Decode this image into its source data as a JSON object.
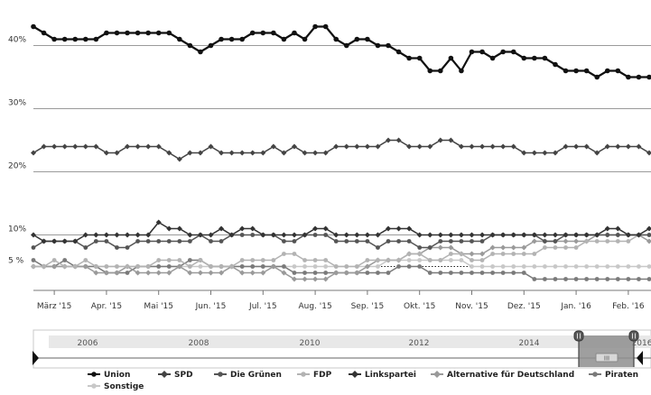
{
  "chart_data": {
    "type": "line",
    "title": "",
    "xlabel": "",
    "ylabel": "",
    "ylim": [
      0,
      44
    ],
    "y_ticks": [
      {
        "value": 5,
        "label": "5 %"
      },
      {
        "value": 10,
        "label": "10%"
      },
      {
        "value": 20,
        "label": "20%"
      },
      {
        "value": 30,
        "label": "30%"
      },
      {
        "value": 40,
        "label": "40%"
      }
    ],
    "x_ticks": [
      {
        "index": 2,
        "label": "März '15"
      },
      {
        "index": 7,
        "label": "Apr. '15"
      },
      {
        "index": 12,
        "label": "Mai '15"
      },
      {
        "index": 17,
        "label": "Jun. '15"
      },
      {
        "index": 22,
        "label": "Jul. '15"
      },
      {
        "index": 27,
        "label": "Aug. '15"
      },
      {
        "index": 32,
        "label": "Sep. '15"
      },
      {
        "index": 37,
        "label": "Okt. '15"
      },
      {
        "index": 42,
        "label": "Nov. '15"
      },
      {
        "index": 47,
        "label": "Dez. '15"
      },
      {
        "index": 52,
        "label": "Jan. '16"
      },
      {
        "index": 57,
        "label": "Feb. '16"
      }
    ],
    "grid": true,
    "legend_position": "bottom",
    "point_count": 60,
    "series": [
      {
        "name": "Union",
        "color": "#111111",
        "marker": "circle",
        "values": [
          43,
          42,
          41,
          41,
          41,
          41,
          41,
          42,
          42,
          42,
          42,
          42,
          42,
          42,
          41,
          40,
          39,
          40,
          41,
          41,
          41,
          42,
          42,
          42,
          41,
          42,
          41,
          43,
          43,
          41,
          40,
          41,
          41,
          40,
          40,
          39,
          38,
          38,
          36,
          36,
          38,
          36,
          39,
          39,
          38,
          39,
          39,
          38,
          38,
          38,
          37,
          36,
          36,
          36,
          35,
          36,
          36,
          35,
          35,
          35
        ]
      },
      {
        "name": "SPD",
        "color": "#444444",
        "marker": "diamond",
        "values": [
          23,
          24,
          24,
          24,
          24,
          24,
          24,
          23,
          23,
          24,
          24,
          24,
          24,
          23,
          22,
          23,
          23,
          24,
          23,
          23,
          23,
          23,
          23,
          24,
          23,
          24,
          23,
          23,
          23,
          24,
          24,
          24,
          24,
          24,
          25,
          25,
          24,
          24,
          24,
          25,
          25,
          24,
          24,
          24,
          24,
          24,
          24,
          23,
          23,
          23,
          23,
          24,
          24,
          24,
          23,
          24,
          24,
          24,
          24,
          23
        ]
      },
      {
        "name": "Die Grünen",
        "color": "#555555",
        "marker": "circle",
        "values": [
          8,
          9,
          9,
          9,
          9,
          8,
          9,
          9,
          8,
          8,
          9,
          9,
          9,
          9,
          9,
          9,
          10,
          9,
          9,
          10,
          10,
          10,
          10,
          10,
          9,
          9,
          10,
          10,
          10,
          9,
          9,
          9,
          9,
          8,
          9,
          9,
          9,
          8,
          8,
          9,
          9,
          9,
          9,
          9,
          10,
          10,
          10,
          10,
          10,
          9,
          9,
          10,
          10,
          10,
          10,
          10,
          10,
          10,
          10,
          10
        ]
      },
      {
        "name": "FDP",
        "color": "#b3b3b3",
        "marker": "circle",
        "values": [
          5,
          5,
          6,
          5,
          5,
          6,
          5,
          5,
          5,
          5,
          5,
          5,
          6,
          6,
          6,
          5,
          6,
          5,
          5,
          5,
          6,
          6,
          6,
          6,
          7,
          7,
          6,
          6,
          6,
          5,
          5,
          5,
          6,
          6,
          6,
          6,
          7,
          7,
          6,
          6,
          7,
          7,
          6,
          6,
          7,
          7,
          7,
          7,
          7,
          8,
          8,
          8,
          8,
          9,
          9,
          9,
          9,
          9,
          10,
          10
        ]
      },
      {
        "name": "Linkspartei",
        "color": "#333333",
        "marker": "diamond",
        "values": [
          10,
          9,
          9,
          9,
          9,
          10,
          10,
          10,
          10,
          10,
          10,
          10,
          12,
          11,
          11,
          10,
          10,
          10,
          11,
          10,
          11,
          11,
          10,
          10,
          10,
          10,
          10,
          11,
          11,
          10,
          10,
          10,
          10,
          10,
          11,
          11,
          11,
          10,
          10,
          10,
          10,
          10,
          10,
          10,
          10,
          10,
          10,
          10,
          10,
          10,
          10,
          10,
          10,
          10,
          10,
          11,
          11,
          10,
          10,
          11
        ]
      },
      {
        "name": "Alternative für Deutschland",
        "color": "#9a9a9a",
        "marker": "diamond",
        "values": [
          5,
          5,
          5,
          5,
          5,
          5,
          4,
          4,
          4,
          5,
          4,
          4,
          4,
          4,
          5,
          4,
          4,
          4,
          4,
          5,
          4,
          4,
          4,
          5,
          4,
          3,
          3,
          3,
          3,
          4,
          4,
          4,
          5,
          6,
          6,
          6,
          7,
          7,
          8,
          8,
          8,
          7,
          7,
          7,
          8,
          8,
          8,
          8,
          9,
          9,
          9,
          9,
          9,
          9,
          10,
          10,
          10,
          10,
          10,
          9
        ]
      },
      {
        "name": "Piraten",
        "color": "#7a7a7a",
        "marker": "circle",
        "values": [
          6,
          5,
          5,
          6,
          5,
          5,
          5,
          4,
          4,
          4,
          5,
          5,
          5,
          5,
          5,
          6,
          6,
          5,
          5,
          5,
          5,
          5,
          5,
          5,
          5,
          4,
          4,
          4,
          4,
          4,
          4,
          4,
          4,
          4,
          4,
          5,
          5,
          5,
          4,
          4,
          4,
          4,
          4,
          4,
          4,
          4,
          4,
          4,
          3,
          3,
          3,
          3,
          3,
          3,
          3,
          3,
          3,
          3,
          3,
          3
        ]
      },
      {
        "name": "Sonstige",
        "color": "#c8c8c8",
        "marker": "circle",
        "values": [
          5,
          5,
          5,
          5,
          5,
          5,
          5,
          5,
          5,
          5,
          5,
          5,
          5,
          5,
          5,
          5,
          5,
          5,
          5,
          5,
          5,
          5,
          5,
          5,
          5,
          5,
          5,
          5,
          5,
          5,
          5,
          5,
          5,
          5,
          6,
          6,
          6,
          6,
          6,
          6,
          6,
          6,
          5,
          5,
          5,
          5,
          5,
          5,
          5,
          5,
          5,
          5,
          5,
          5,
          5,
          5,
          5,
          5,
          5,
          5
        ]
      }
    ]
  },
  "navigator": {
    "years": [
      "2006",
      "2008",
      "2010",
      "2012",
      "2014",
      "2016"
    ],
    "handle_label": "III"
  }
}
